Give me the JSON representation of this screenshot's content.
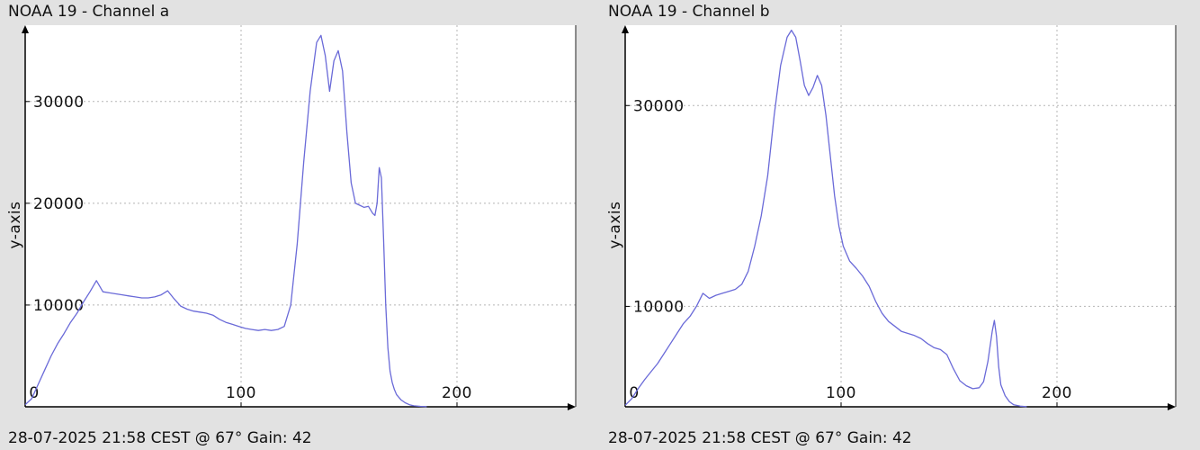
{
  "chart_data": [
    {
      "type": "line",
      "title": "NOAA 19 - Channel a",
      "footer": "28-07-2025 21:58 CEST @ 67° Gain: 42",
      "ylabel": "y-axis",
      "xlabel": "",
      "xlim": [
        0,
        255
      ],
      "ylim": [
        0,
        37500
      ],
      "xticks": [
        0,
        100,
        200
      ],
      "yticks": [
        10000,
        20000,
        30000
      ],
      "grid": true,
      "line_color": "#6a6ad8",
      "series": [
        {
          "x": [
            0,
            3,
            6,
            9,
            12,
            15,
            18,
            21,
            24,
            27,
            30,
            33,
            36,
            39,
            42,
            45,
            48,
            51,
            54,
            57,
            60,
            63,
            66,
            69,
            72,
            75,
            78,
            81,
            84,
            87,
            90,
            93,
            96,
            99,
            102,
            105,
            108,
            111,
            114,
            117,
            120,
            123,
            126,
            129,
            132,
            135,
            137,
            139,
            141,
            143,
            145,
            147,
            149,
            151,
            153,
            155,
            157,
            159,
            161,
            162,
            163,
            164,
            165,
            166,
            167,
            168,
            169,
            170,
            171,
            172,
            174,
            176,
            178,
            180,
            183,
            186
          ],
          "y": [
            200,
            800,
            2200,
            3600,
            5000,
            6200,
            7200,
            8300,
            9200,
            10300,
            11300,
            12400,
            11300,
            11200,
            11100,
            11000,
            10900,
            10800,
            10700,
            10700,
            10800,
            11000,
            11400,
            10600,
            9900,
            9600,
            9400,
            9300,
            9200,
            9000,
            8600,
            8300,
            8100,
            7900,
            7700,
            7600,
            7500,
            7600,
            7500,
            7600,
            7900,
            10000,
            16000,
            24000,
            31000,
            35800,
            36500,
            34500,
            31000,
            34000,
            35000,
            33000,
            27000,
            22000,
            20000,
            19800,
            19600,
            19700,
            19000,
            18800,
            20000,
            23500,
            22500,
            16500,
            10000,
            5800,
            3500,
            2400,
            1700,
            1200,
            700,
            400,
            200,
            100,
            40,
            10
          ]
        }
      ]
    },
    {
      "type": "line",
      "title": "NOAA 19 - Channel b",
      "footer": "28-07-2025 21:58 CEST @ 67° Gain: 42",
      "ylabel": "y-axis",
      "xlabel": "",
      "xlim": [
        0,
        255
      ],
      "ylim": [
        0,
        38000
      ],
      "xticks": [
        0,
        100,
        200
      ],
      "yticks": [
        10000,
        30000
      ],
      "grid": true,
      "line_color": "#6a6ad8",
      "series": [
        {
          "x": [
            0,
            3,
            6,
            9,
            12,
            15,
            18,
            21,
            24,
            27,
            30,
            33,
            36,
            39,
            42,
            45,
            48,
            51,
            54,
            57,
            60,
            63,
            66,
            69,
            72,
            75,
            77,
            79,
            81,
            83,
            85,
            87,
            89,
            91,
            93,
            95,
            97,
            99,
            101,
            104,
            107,
            110,
            113,
            116,
            119,
            122,
            125,
            128,
            131,
            134,
            137,
            140,
            143,
            146,
            149,
            152,
            155,
            158,
            161,
            164,
            166,
            168,
            170,
            171,
            172,
            173,
            174,
            176,
            178,
            180,
            183,
            186
          ],
          "y": [
            150,
            800,
            1800,
            2700,
            3500,
            4300,
            5300,
            6300,
            7300,
            8300,
            9000,
            10000,
            11300,
            10800,
            11100,
            11300,
            11500,
            11700,
            12200,
            13500,
            16000,
            19000,
            23000,
            29000,
            34000,
            36800,
            37500,
            36800,
            34500,
            32000,
            31000,
            31800,
            33000,
            32000,
            29000,
            25000,
            21000,
            18000,
            16000,
            14500,
            13800,
            13000,
            12000,
            10500,
            9300,
            8500,
            8000,
            7500,
            7300,
            7100,
            6800,
            6300,
            5900,
            5700,
            5200,
            3800,
            2600,
            2100,
            1800,
            1900,
            2500,
            4500,
            7500,
            8600,
            7000,
            4000,
            2200,
            1100,
            500,
            200,
            60,
            10
          ]
        }
      ]
    }
  ]
}
